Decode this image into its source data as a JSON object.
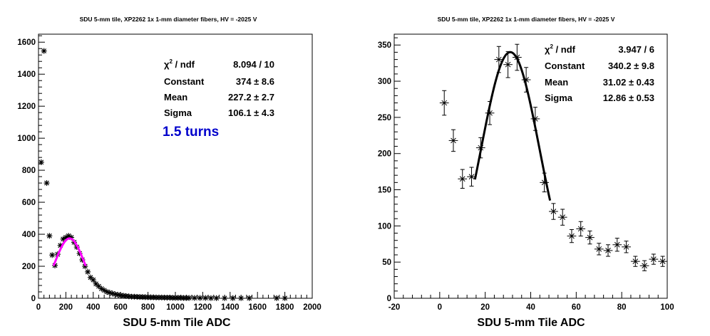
{
  "colors": {
    "fit_left": "#ff00ff",
    "fit_right": "#000000",
    "annotation": "#0000cc",
    "frame": "#000000"
  },
  "chart_data": [
    {
      "type": "scatter",
      "title": "SDU 5-mm tile, XP2262 1x 1-mm diameter fibers, HV = -2025 V",
      "xlabel": "SDU 5-mm Tile ADC",
      "ylabel": "",
      "xlim": [
        0,
        2000
      ],
      "ylim": [
        0,
        1650
      ],
      "xticks": [
        0,
        200,
        400,
        600,
        800,
        1000,
        1200,
        1400,
        1600,
        1800,
        2000
      ],
      "yticks": [
        0,
        200,
        400,
        600,
        800,
        1000,
        1200,
        1400,
        1600
      ],
      "marker": "asterisk",
      "points": {
        "x": [
          20,
          40,
          60,
          80,
          100,
          120,
          140,
          160,
          180,
          200,
          220,
          240,
          260,
          280,
          300,
          320,
          340,
          360,
          380,
          400,
          420,
          440,
          460,
          480,
          500,
          520,
          540,
          560,
          580,
          600,
          620,
          640,
          660,
          680,
          700,
          720,
          740,
          760,
          780,
          800,
          820,
          840,
          860,
          880,
          900,
          920,
          940,
          960,
          980,
          1000,
          1020,
          1040,
          1060,
          1080,
          1100,
          1140,
          1180,
          1220,
          1260,
          1300,
          1360,
          1420,
          1480,
          1540,
          1740,
          1800
        ],
        "y": [
          850,
          1545,
          720,
          390,
          270,
          205,
          275,
          330,
          370,
          380,
          390,
          380,
          350,
          320,
          280,
          240,
          200,
          165,
          130,
          115,
          90,
          75,
          60,
          50,
          40,
          35,
          30,
          25,
          22,
          18,
          16,
          14,
          12,
          10,
          10,
          9,
          8,
          8,
          7,
          7,
          6,
          6,
          5,
          5,
          5,
          4,
          4,
          4,
          3,
          3,
          3,
          3,
          2,
          2,
          2,
          2,
          2,
          2,
          1,
          1,
          1,
          1,
          1,
          1,
          1,
          1
        ]
      },
      "fit": {
        "function": "gaus",
        "range": [
          110,
          345
        ],
        "constant": 374,
        "mean": 227.2,
        "sigma": 106.1
      },
      "stats": [
        {
          "label": "χ² / ndf",
          "value": "8.094 / 10"
        },
        {
          "label": "Constant",
          "value": "374 ± 8.6"
        },
        {
          "label": "Mean",
          "value": "227.2 ± 2.7"
        },
        {
          "label": "Sigma",
          "value": "106.1 ± 4.3"
        }
      ],
      "annotation": "1.5 turns"
    },
    {
      "type": "scatter",
      "title": "SDU 5-mm tile, XP2262 1x 1-mm diameter fibers, HV = -2025 V",
      "xlabel": "SDU 5-mm Tile ADC",
      "ylabel": "",
      "xlim": [
        -20,
        100
      ],
      "ylim": [
        0,
        365
      ],
      "xticks": [
        -20,
        0,
        20,
        40,
        60,
        80,
        100
      ],
      "yticks": [
        0,
        50,
        100,
        150,
        200,
        250,
        300,
        350
      ],
      "marker": "cross-with-errorbars",
      "x_bin_halfwidth": 2,
      "points": {
        "x": [
          2,
          6,
          10,
          14,
          18,
          22,
          26,
          30,
          34,
          38,
          42,
          46,
          50,
          54,
          58,
          62,
          66,
          70,
          74,
          78,
          82,
          86,
          90,
          94,
          98
        ],
        "y": [
          270,
          218,
          165,
          168,
          208,
          256,
          330,
          323,
          333,
          302,
          248,
          160,
          120,
          112,
          86,
          96,
          84,
          68,
          66,
          74,
          71,
          51,
          45,
          54,
          51
        ],
        "err": [
          17,
          15,
          13,
          13,
          14,
          16,
          18,
          18,
          18,
          17,
          16,
          13,
          11,
          11,
          9,
          10,
          9,
          8,
          8,
          9,
          8,
          7,
          7,
          7,
          7
        ]
      },
      "fit": {
        "function": "gaus",
        "range": [
          15.5,
          48.5
        ],
        "constant": 340.2,
        "mean": 31.02,
        "sigma": 12.86
      },
      "stats": [
        {
          "label": "χ² / ndf",
          "value": "3.947 / 6"
        },
        {
          "label": "Constant",
          "value": "340.2 ± 9.8"
        },
        {
          "label": "Mean",
          "value": "31.02 ± 0.43"
        },
        {
          "label": "Sigma",
          "value": "12.86 ± 0.53"
        }
      ]
    }
  ]
}
